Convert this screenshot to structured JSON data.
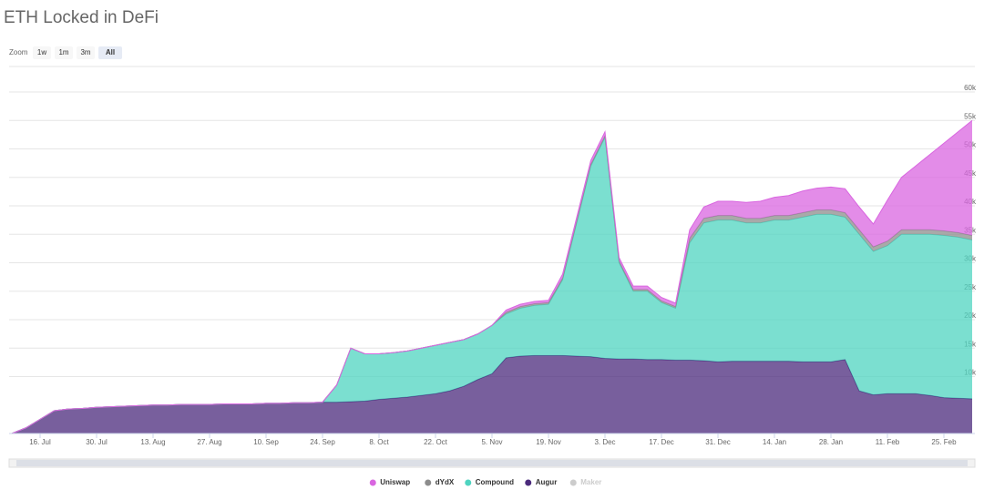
{
  "chart_data": {
    "type": "stacked-area",
    "title": "ETH Locked in DeFi",
    "zoom": {
      "label": "Zoom",
      "buttons": [
        "1w",
        "1m",
        "3m",
        "All"
      ],
      "selected": 3
    },
    "categories": [
      null,
      null,
      "16. Jul",
      null,
      null,
      null,
      "30. Jul",
      null,
      null,
      null,
      "13. Aug",
      null,
      null,
      null,
      "27. Aug",
      null,
      null,
      null,
      "10. Sep",
      null,
      null,
      null,
      "24. Sep",
      null,
      null,
      null,
      "8. Oct",
      null,
      null,
      null,
      "22. Oct",
      null,
      null,
      null,
      "5. Nov",
      null,
      null,
      null,
      "19. Nov",
      null,
      null,
      null,
      "3. Dec",
      null,
      null,
      null,
      "17. Dec",
      null,
      null,
      null,
      "31. Dec",
      null,
      null,
      null,
      "14. Jan",
      null,
      null,
      null,
      "28. Jan",
      null,
      null,
      null,
      "11. Feb",
      null,
      null,
      null,
      "25. Feb",
      null,
      null
    ],
    "series": [
      {
        "name": "Augur",
        "color": "#4b2a7c",
        "values": [
          0,
          1000,
          2500,
          4000,
          4300,
          4400,
          4600,
          4700,
          4800,
          4900,
          5000,
          5000,
          5100,
          5100,
          5100,
          5200,
          5200,
          5200,
          5300,
          5300,
          5400,
          5400,
          5500,
          5500,
          5600,
          5700,
          6000,
          6200,
          6400,
          6700,
          7000,
          7500,
          8300,
          9500,
          10500,
          13300,
          13600,
          13700,
          13700,
          13700,
          13600,
          13500,
          13200,
          13100,
          13100,
          13000,
          13000,
          12900,
          12900,
          12800,
          12600,
          12700,
          12700,
          12700,
          12700,
          12700,
          12600,
          12600,
          12600,
          13000,
          7500,
          6800,
          7000,
          7000,
          7000,
          6700,
          6300,
          6200,
          6100
        ]
      },
      {
        "name": "Compound",
        "color": "#4fd4c0",
        "values": [
          0,
          0,
          0,
          0,
          0,
          0,
          0,
          0,
          0,
          0,
          0,
          0,
          0,
          0,
          0,
          0,
          0,
          0,
          0,
          0,
          0,
          0,
          0,
          3000,
          9400,
          8300,
          8000,
          8000,
          8100,
          8300,
          8500,
          8500,
          8200,
          8000,
          8500,
          7700,
          8400,
          8800,
          9000,
          13300,
          23400,
          33500,
          38800,
          16900,
          11900,
          12000,
          10000,
          9100,
          20600,
          24200,
          24900,
          24800,
          24300,
          24300,
          24800,
          24800,
          25400,
          25900,
          25900,
          25000,
          27500,
          25200,
          26000,
          28000,
          28000,
          28300,
          28500,
          28300,
          27900
        ]
      },
      {
        "name": "dYdX",
        "color": "#8c8c8c",
        "values": [
          0,
          0,
          0,
          0,
          0,
          0,
          0,
          0,
          0,
          0,
          0,
          0,
          0,
          0,
          0,
          0,
          0,
          0,
          0,
          0,
          0,
          0,
          0,
          0,
          0,
          0,
          0,
          0,
          0,
          0,
          0,
          0,
          0,
          0,
          0,
          300,
          300,
          300,
          300,
          300,
          300,
          300,
          300,
          300,
          300,
          300,
          300,
          300,
          800,
          800,
          800,
          800,
          800,
          800,
          800,
          800,
          800,
          800,
          800,
          800,
          800,
          800,
          800,
          800,
          800,
          800,
          800,
          800,
          800
        ]
      },
      {
        "name": "Uniswap",
        "color": "#d966e0",
        "values": [
          0,
          0,
          0,
          0,
          0,
          0,
          0,
          0,
          0,
          0,
          0,
          0,
          0,
          0,
          0,
          0,
          0,
          0,
          0,
          0,
          0,
          0,
          0,
          0,
          0,
          0,
          0,
          0,
          0,
          0,
          0,
          0,
          0,
          0,
          0,
          400,
          400,
          400,
          400,
          700,
          700,
          700,
          700,
          600,
          600,
          600,
          600,
          600,
          1500,
          2000,
          2500,
          2500,
          2800,
          3000,
          3200,
          3500,
          3800,
          3800,
          4000,
          4200,
          4000,
          4000,
          7200,
          9200,
          11200,
          13200,
          15400,
          17700,
          20200
        ]
      }
    ],
    "hidden_series": [
      {
        "name": "Maker",
        "color": "#cccccc"
      }
    ],
    "ylim": [
      0,
      60000
    ],
    "yticks": [
      {
        "value": 10000,
        "label": "10k"
      },
      {
        "value": 15000,
        "label": "15k"
      },
      {
        "value": 20000,
        "label": "20k"
      },
      {
        "value": 25000,
        "label": "25k"
      },
      {
        "value": 30000,
        "label": "30k"
      },
      {
        "value": 35000,
        "label": "35k"
      },
      {
        "value": 40000,
        "label": "40k"
      },
      {
        "value": 45000,
        "label": "45k"
      },
      {
        "value": 50000,
        "label": "50k"
      },
      {
        "value": 55000,
        "label": "55k"
      },
      {
        "value": 60000,
        "label": "60k"
      }
    ],
    "grid": true
  }
}
